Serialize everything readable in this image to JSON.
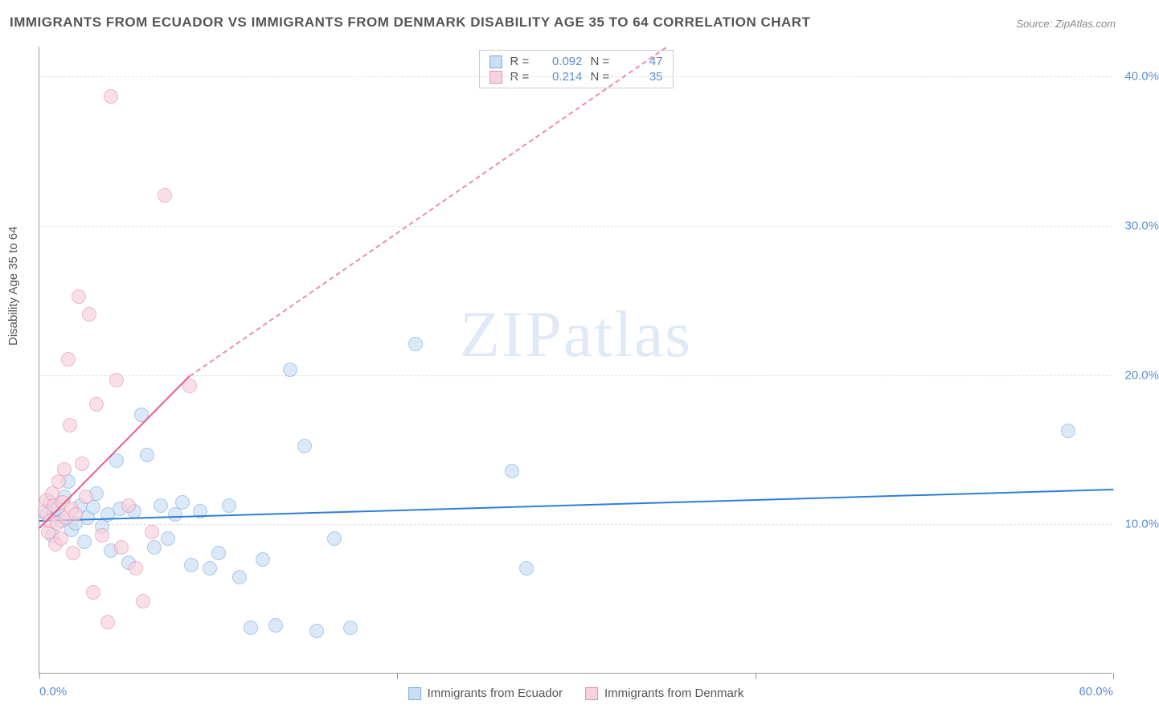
{
  "title": "IMMIGRANTS FROM ECUADOR VS IMMIGRANTS FROM DENMARK DISABILITY AGE 35 TO 64 CORRELATION CHART",
  "source": "Source: ZipAtlas.com",
  "watermark_zip": "ZIP",
  "watermark_atlas": "atlas",
  "ylabel": "Disability Age 35 to 64",
  "chart": {
    "type": "scatter",
    "xlim": [
      0,
      60
    ],
    "ylim": [
      0,
      42
    ],
    "xticks": [
      0,
      20,
      40,
      60
    ],
    "xtick_labels": [
      "0.0%",
      "",
      "",
      "60.0%"
    ],
    "yticks": [
      10,
      20,
      30,
      40
    ],
    "ytick_labels": [
      "10.0%",
      "20.0%",
      "30.0%",
      "40.0%"
    ],
    "background_color": "#ffffff",
    "grid_color": "#dddddd",
    "axis_color": "#999999",
    "point_radius": 9,
    "series": [
      {
        "name": "Immigrants from Ecuador",
        "fill": "#c9ddf3",
        "stroke": "#7eaede",
        "fill_opacity": 0.65,
        "r_value": "0.092",
        "n_value": "47",
        "trend": {
          "x1": 0,
          "y1": 10.3,
          "x2": 60,
          "y2": 12.4,
          "color": "#2f7ed8",
          "width": 2,
          "dashed": false
        },
        "trend_ext": null,
        "points": [
          [
            0.4,
            10.6
          ],
          [
            0.6,
            11.4
          ],
          [
            0.7,
            9.2
          ],
          [
            0.8,
            10.8
          ],
          [
            1.0,
            11.0
          ],
          [
            1.2,
            10.2
          ],
          [
            1.4,
            11.8
          ],
          [
            1.6,
            12.8
          ],
          [
            1.8,
            9.6
          ],
          [
            2.0,
            10.0
          ],
          [
            2.3,
            11.2
          ],
          [
            2.5,
            8.8
          ],
          [
            2.7,
            10.4
          ],
          [
            3.0,
            11.1
          ],
          [
            3.2,
            12.0
          ],
          [
            3.5,
            9.8
          ],
          [
            3.8,
            10.6
          ],
          [
            4.0,
            8.2
          ],
          [
            4.3,
            14.2
          ],
          [
            4.5,
            11.0
          ],
          [
            5.0,
            7.4
          ],
          [
            5.3,
            10.8
          ],
          [
            5.7,
            17.3
          ],
          [
            6.0,
            14.6
          ],
          [
            6.4,
            8.4
          ],
          [
            6.8,
            11.2
          ],
          [
            7.2,
            9.0
          ],
          [
            7.6,
            10.6
          ],
          [
            8.0,
            11.4
          ],
          [
            8.5,
            7.2
          ],
          [
            9.0,
            10.8
          ],
          [
            9.5,
            7.0
          ],
          [
            10.0,
            8.0
          ],
          [
            10.6,
            11.2
          ],
          [
            11.2,
            6.4
          ],
          [
            11.8,
            3.0
          ],
          [
            12.5,
            7.6
          ],
          [
            13.2,
            3.2
          ],
          [
            14.0,
            20.3
          ],
          [
            14.8,
            15.2
          ],
          [
            15.5,
            2.8
          ],
          [
            16.5,
            9.0
          ],
          [
            17.4,
            3.0
          ],
          [
            21.0,
            22.0
          ],
          [
            26.4,
            13.5
          ],
          [
            27.2,
            7.0
          ],
          [
            57.5,
            16.2
          ]
        ]
      },
      {
        "name": "Immigrants from Denmark",
        "fill": "#f7d1dc",
        "stroke": "#e98fab",
        "fill_opacity": 0.65,
        "r_value": "0.214",
        "n_value": "35",
        "trend": {
          "x1": 0,
          "y1": 9.8,
          "x2": 8.4,
          "y2": 20.0,
          "color": "#e95b87",
          "width": 2,
          "dashed": false
        },
        "trend_ext": {
          "x1": 8.4,
          "y1": 20.0,
          "x2": 35,
          "y2": 42.0,
          "color": "#e98fab",
          "width": 1.5,
          "dashed": true
        },
        "points": [
          [
            0.3,
            10.8
          ],
          [
            0.4,
            11.6
          ],
          [
            0.5,
            9.4
          ],
          [
            0.6,
            10.2
          ],
          [
            0.7,
            12.0
          ],
          [
            0.8,
            11.2
          ],
          [
            0.9,
            8.6
          ],
          [
            1.0,
            10.0
          ],
          [
            1.1,
            12.8
          ],
          [
            1.2,
            9.0
          ],
          [
            1.3,
            11.4
          ],
          [
            1.4,
            13.6
          ],
          [
            1.5,
            10.4
          ],
          [
            1.6,
            21.0
          ],
          [
            1.7,
            16.6
          ],
          [
            1.8,
            11.0
          ],
          [
            1.9,
            8.0
          ],
          [
            2.0,
            10.6
          ],
          [
            2.2,
            25.2
          ],
          [
            2.4,
            14.0
          ],
          [
            2.6,
            11.8
          ],
          [
            2.8,
            24.0
          ],
          [
            3.0,
            5.4
          ],
          [
            3.2,
            18.0
          ],
          [
            3.5,
            9.2
          ],
          [
            3.8,
            3.4
          ],
          [
            4.0,
            38.6
          ],
          [
            4.3,
            19.6
          ],
          [
            4.6,
            8.4
          ],
          [
            5.0,
            11.2
          ],
          [
            5.4,
            7.0
          ],
          [
            5.8,
            4.8
          ],
          [
            6.3,
            9.4
          ],
          [
            7.0,
            32.0
          ],
          [
            8.4,
            19.2
          ]
        ]
      }
    ]
  },
  "legend_top": {
    "r_label": "R =",
    "n_label": "N ="
  },
  "colors": {
    "title": "#555555",
    "source": "#888888",
    "tick_label": "#5b8dd6",
    "watermark": "#5b8dd6"
  }
}
